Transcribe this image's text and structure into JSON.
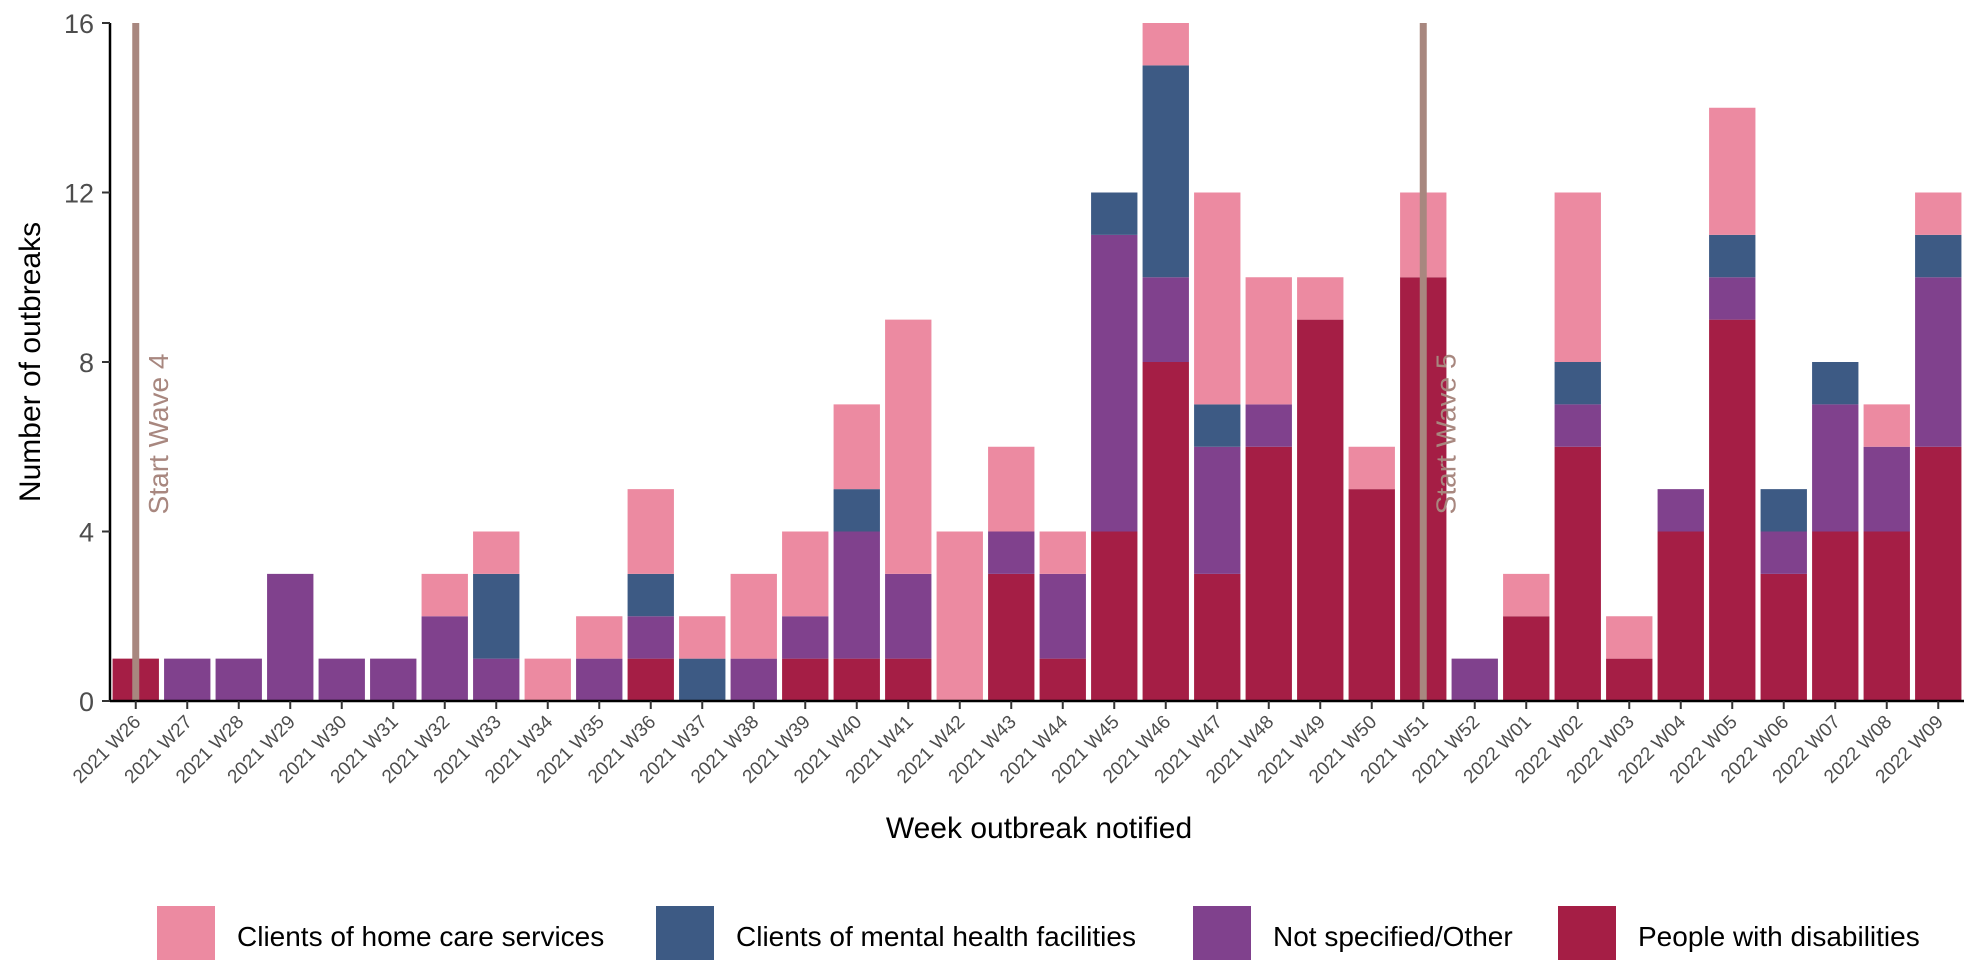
{
  "chart_data": {
    "type": "bar",
    "stacked": true,
    "xlabel": "Week outbreak notified",
    "ylabel": "Number of outbreaks",
    "ylim": [
      0,
      16
    ],
    "yticks": [
      0,
      4,
      8,
      12,
      16
    ],
    "grid": false,
    "legend_position": "bottom",
    "categories": [
      "2021 W26",
      "2021 W27",
      "2021 W28",
      "2021 W29",
      "2021 W30",
      "2021 W31",
      "2021 W32",
      "2021 W33",
      "2021 W34",
      "2021 W35",
      "2021 W36",
      "2021 W37",
      "2021 W38",
      "2021 W39",
      "2021 W40",
      "2021 W41",
      "2021 W42",
      "2021 W43",
      "2021 W44",
      "2021 W45",
      "2021 W46",
      "2021 W47",
      "2021 W48",
      "2021 W49",
      "2021 W50",
      "2021 W51",
      "2021 W52",
      "2022 W01",
      "2022 W02",
      "2022 W03",
      "2022 W04",
      "2022 W05",
      "2022 W06",
      "2022 W07",
      "2022 W08",
      "2022 W09"
    ],
    "series": [
      {
        "name": "People with disabilities",
        "color": "#a51e45",
        "values": [
          1,
          0,
          0,
          0,
          0,
          0,
          0,
          0,
          0,
          0,
          1,
          0,
          0,
          1,
          1,
          1,
          0,
          3,
          1,
          4,
          8,
          3,
          6,
          9,
          5,
          10,
          0,
          2,
          6,
          1,
          4,
          9,
          3,
          4,
          4,
          6
        ]
      },
      {
        "name": "Not specified/Other",
        "color": "#80418d",
        "values": [
          0,
          1,
          1,
          3,
          1,
          1,
          2,
          1,
          0,
          1,
          1,
          0,
          1,
          1,
          3,
          2,
          0,
          1,
          2,
          7,
          2,
          3,
          1,
          0,
          0,
          0,
          1,
          0,
          1,
          0,
          1,
          1,
          1,
          3,
          2,
          4
        ]
      },
      {
        "name": "Clients of mental health facilities",
        "color": "#3d5a84",
        "values": [
          0,
          0,
          0,
          0,
          0,
          0,
          0,
          2,
          0,
          0,
          1,
          1,
          0,
          0,
          1,
          0,
          0,
          0,
          0,
          1,
          5,
          1,
          0,
          0,
          0,
          0,
          0,
          0,
          1,
          0,
          0,
          1,
          1,
          1,
          0,
          1
        ]
      },
      {
        "name": "Clients of home care services",
        "color": "#ec8aa1",
        "values": [
          0,
          0,
          0,
          0,
          0,
          0,
          1,
          1,
          1,
          1,
          2,
          1,
          2,
          2,
          2,
          6,
          4,
          2,
          1,
          0,
          1,
          5,
          3,
          1,
          1,
          2,
          0,
          1,
          4,
          1,
          0,
          3,
          0,
          0,
          1,
          1
        ]
      }
    ],
    "legend_order": [
      "Clients of home care services",
      "Clients of mental health facilities",
      "Not specified/Other",
      "People with disabilities"
    ],
    "annotations": [
      {
        "category": "2021 W26",
        "label": "Start Wave 4",
        "color": "#a8877f"
      },
      {
        "category": "2021 W51",
        "label": "Start Wave 5",
        "color": "#a8877f"
      }
    ]
  }
}
